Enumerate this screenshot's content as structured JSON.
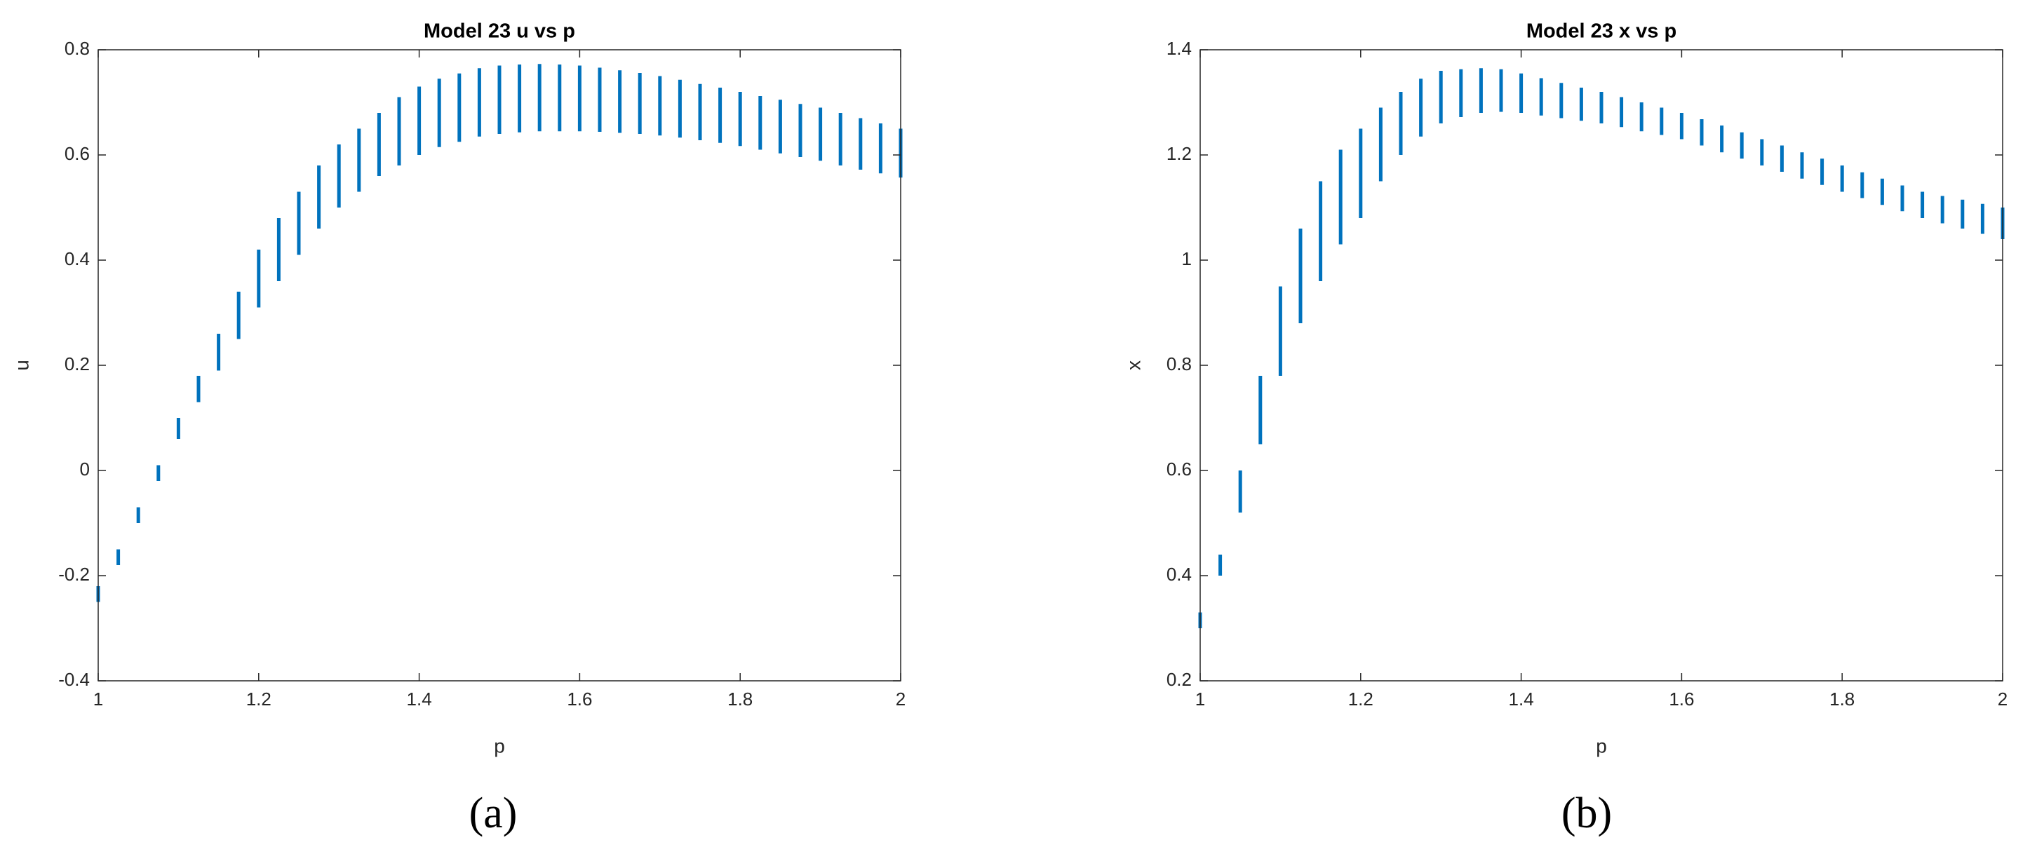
{
  "chart_data": [
    {
      "type": "range",
      "title": "Model 23 u vs p",
      "x_label": "p",
      "y_label": "u",
      "caption": "(a)",
      "color": "#0072bd",
      "x": [
        1.0,
        1.025,
        1.05,
        1.075,
        1.1,
        1.125,
        1.15,
        1.175,
        1.2,
        1.225,
        1.25,
        1.275,
        1.3,
        1.325,
        1.35,
        1.375,
        1.4,
        1.425,
        1.45,
        1.475,
        1.5,
        1.525,
        1.55,
        1.575,
        1.6,
        1.625,
        1.65,
        1.675,
        1.7,
        1.725,
        1.75,
        1.775,
        1.8,
        1.825,
        1.85,
        1.875,
        1.9,
        1.925,
        1.95,
        1.975,
        2.0
      ],
      "low": [
        -0.25,
        -0.18,
        -0.1,
        -0.02,
        0.06,
        0.13,
        0.19,
        0.25,
        0.31,
        0.36,
        0.41,
        0.46,
        0.5,
        0.53,
        0.56,
        0.58,
        0.6,
        0.615,
        0.625,
        0.635,
        0.64,
        0.643,
        0.645,
        0.645,
        0.645,
        0.644,
        0.642,
        0.64,
        0.637,
        0.633,
        0.628,
        0.623,
        0.617,
        0.61,
        0.603,
        0.596,
        0.589,
        0.58,
        0.572,
        0.565,
        0.557
      ],
      "high": [
        -0.22,
        -0.15,
        -0.07,
        0.01,
        0.1,
        0.18,
        0.26,
        0.34,
        0.42,
        0.48,
        0.53,
        0.58,
        0.62,
        0.65,
        0.68,
        0.71,
        0.73,
        0.745,
        0.755,
        0.765,
        0.77,
        0.772,
        0.773,
        0.772,
        0.77,
        0.766,
        0.761,
        0.756,
        0.75,
        0.743,
        0.735,
        0.728,
        0.72,
        0.712,
        0.705,
        0.697,
        0.69,
        0.68,
        0.67,
        0.66,
        0.65
      ],
      "xlim": [
        1,
        2
      ],
      "xticks": [
        1,
        1.2,
        1.4,
        1.6,
        1.8,
        2
      ],
      "ylim": [
        -0.4,
        0.8
      ],
      "yticks": [
        -0.4,
        -0.2,
        0,
        0.2,
        0.4,
        0.6,
        0.8
      ]
    },
    {
      "type": "range",
      "title": "Model 23 x vs p",
      "x_label": "p",
      "y_label": "x",
      "caption": "(b)",
      "color": "#0072bd",
      "x": [
        1.0,
        1.025,
        1.05,
        1.075,
        1.1,
        1.125,
        1.15,
        1.175,
        1.2,
        1.225,
        1.25,
        1.275,
        1.3,
        1.325,
        1.35,
        1.375,
        1.4,
        1.425,
        1.45,
        1.475,
        1.5,
        1.525,
        1.55,
        1.575,
        1.6,
        1.625,
        1.65,
        1.675,
        1.7,
        1.725,
        1.75,
        1.775,
        1.8,
        1.825,
        1.85,
        1.875,
        1.9,
        1.925,
        1.95,
        1.975,
        2.0
      ],
      "low": [
        0.3,
        0.4,
        0.52,
        0.65,
        0.78,
        0.88,
        0.96,
        1.03,
        1.08,
        1.15,
        1.2,
        1.235,
        1.26,
        1.272,
        1.28,
        1.282,
        1.28,
        1.275,
        1.27,
        1.265,
        1.26,
        1.253,
        1.245,
        1.238,
        1.23,
        1.218,
        1.205,
        1.193,
        1.18,
        1.168,
        1.155,
        1.143,
        1.13,
        1.118,
        1.105,
        1.093,
        1.08,
        1.07,
        1.06,
        1.05,
        1.04
      ],
      "high": [
        0.33,
        0.44,
        0.6,
        0.78,
        0.95,
        1.06,
        1.15,
        1.21,
        1.25,
        1.29,
        1.32,
        1.345,
        1.36,
        1.363,
        1.365,
        1.363,
        1.355,
        1.346,
        1.337,
        1.328,
        1.32,
        1.31,
        1.3,
        1.29,
        1.28,
        1.268,
        1.256,
        1.243,
        1.23,
        1.218,
        1.205,
        1.193,
        1.18,
        1.167,
        1.155,
        1.142,
        1.13,
        1.122,
        1.115,
        1.107,
        1.1
      ],
      "xlim": [
        1,
        2
      ],
      "xticks": [
        1,
        1.2,
        1.4,
        1.6,
        1.8,
        2
      ],
      "ylim": [
        0.2,
        1.4
      ],
      "yticks": [
        0.2,
        0.4,
        0.6,
        0.8,
        1,
        1.2,
        1.4
      ]
    }
  ]
}
